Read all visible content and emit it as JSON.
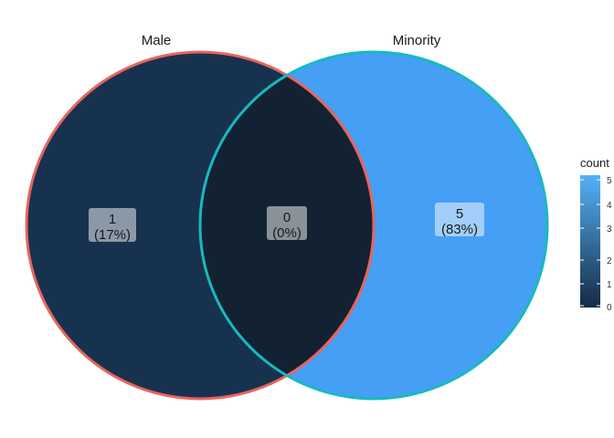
{
  "sets": [
    {
      "name": "Male",
      "outline_color": "#e8645f"
    },
    {
      "name": "Minority",
      "outline_color": "#18b9bf"
    }
  ],
  "regions": {
    "male_only": {
      "count": "1",
      "percent": "(17%)",
      "fill": "#17324f"
    },
    "intersection": {
      "count": "0",
      "percent": "(0%)",
      "fill": "#132233"
    },
    "minority_only": {
      "count": "5",
      "percent": "(83%)",
      "fill": "#459ff5"
    }
  },
  "legend": {
    "title": "count",
    "ticks": [
      "5",
      "4",
      "3",
      "2",
      "1",
      "0"
    ],
    "low_color": "#132b43",
    "high_color": "#56b1f7"
  }
}
